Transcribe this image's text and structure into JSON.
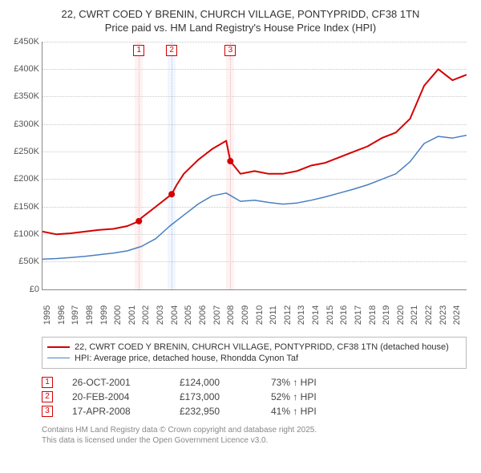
{
  "title_line1": "22, CWRT COED Y BRENIN, CHURCH VILLAGE, PONTYPRIDD, CF38 1TN",
  "title_line2": "Price paid vs. HM Land Registry's House Price Index (HPI)",
  "chart": {
    "type": "line",
    "background_color": "#ffffff",
    "grid_color": "#c8c8c8",
    "ylim": [
      0,
      450000
    ],
    "ytick_step": 50000,
    "yticks": [
      "£0",
      "£50K",
      "£100K",
      "£150K",
      "£200K",
      "£250K",
      "£300K",
      "£350K",
      "£400K",
      "£450K"
    ],
    "xlim": [
      1995,
      2025
    ],
    "xticks": [
      1995,
      1996,
      1997,
      1998,
      1999,
      2000,
      2001,
      2002,
      2003,
      2004,
      2005,
      2006,
      2007,
      2008,
      2009,
      2010,
      2011,
      2012,
      2013,
      2014,
      2015,
      2016,
      2017,
      2018,
      2019,
      2020,
      2021,
      2022,
      2023,
      2024
    ],
    "series": [
      {
        "id": "price-paid",
        "label": "22, CWRT COED Y BRENIN, CHURCH VILLAGE, PONTYPRIDD, CF38 1TN (detached house)",
        "color": "#d40000",
        "line_width": 2,
        "points": [
          [
            1995,
            105000
          ],
          [
            1996,
            100000
          ],
          [
            1997,
            102000
          ],
          [
            1998,
            105000
          ],
          [
            1999,
            108000
          ],
          [
            2000,
            110000
          ],
          [
            2001,
            115000
          ],
          [
            2001.82,
            124000
          ],
          [
            2002,
            130000
          ],
          [
            2003,
            150000
          ],
          [
            2004.14,
            173000
          ],
          [
            2004.5,
            190000
          ],
          [
            2005,
            210000
          ],
          [
            2006,
            235000
          ],
          [
            2007,
            255000
          ],
          [
            2008,
            270000
          ],
          [
            2008.29,
            232950
          ],
          [
            2009,
            210000
          ],
          [
            2010,
            215000
          ],
          [
            2011,
            210000
          ],
          [
            2012,
            210000
          ],
          [
            2013,
            215000
          ],
          [
            2014,
            225000
          ],
          [
            2015,
            230000
          ],
          [
            2016,
            240000
          ],
          [
            2017,
            250000
          ],
          [
            2018,
            260000
          ],
          [
            2019,
            275000
          ],
          [
            2020,
            285000
          ],
          [
            2021,
            310000
          ],
          [
            2022,
            370000
          ],
          [
            2023,
            400000
          ],
          [
            2024,
            380000
          ],
          [
            2025,
            390000
          ]
        ]
      },
      {
        "id": "hpi",
        "label": "HPI: Average price, detached house, Rhondda Cynon Taf",
        "color": "#4a7fbf",
        "line_width": 1.5,
        "points": [
          [
            1995,
            55000
          ],
          [
            1996,
            56000
          ],
          [
            1997,
            58000
          ],
          [
            1998,
            60000
          ],
          [
            1999,
            63000
          ],
          [
            2000,
            66000
          ],
          [
            2001,
            70000
          ],
          [
            2002,
            78000
          ],
          [
            2003,
            92000
          ],
          [
            2004,
            115000
          ],
          [
            2005,
            135000
          ],
          [
            2006,
            155000
          ],
          [
            2007,
            170000
          ],
          [
            2008,
            175000
          ],
          [
            2009,
            160000
          ],
          [
            2010,
            162000
          ],
          [
            2011,
            158000
          ],
          [
            2012,
            155000
          ],
          [
            2013,
            157000
          ],
          [
            2014,
            162000
          ],
          [
            2015,
            168000
          ],
          [
            2016,
            175000
          ],
          [
            2017,
            182000
          ],
          [
            2018,
            190000
          ],
          [
            2019,
            200000
          ],
          [
            2020,
            210000
          ],
          [
            2021,
            232000
          ],
          [
            2022,
            265000
          ],
          [
            2023,
            278000
          ],
          [
            2024,
            275000
          ],
          [
            2025,
            280000
          ]
        ]
      }
    ],
    "markers": [
      {
        "idx": "1",
        "x": 2001.82,
        "y": 124000,
        "band_color": "#fde8e8",
        "line_color": "#e9b4b4"
      },
      {
        "idx": "2",
        "x": 2004.14,
        "y": 173000,
        "band_color": "#e8eefd",
        "line_color": "#b4c3e9"
      },
      {
        "idx": "3",
        "x": 2008.29,
        "y": 232950,
        "band_color": "#fde8e8",
        "line_color": "#e9b4b4"
      }
    ]
  },
  "legend": [
    {
      "series": 0
    },
    {
      "series": 1
    }
  ],
  "sales": [
    {
      "idx": "1",
      "date": "26-OCT-2001",
      "price": "£124,000",
      "hpi": "73% ↑ HPI"
    },
    {
      "idx": "2",
      "date": "20-FEB-2004",
      "price": "£173,000",
      "hpi": "52% ↑ HPI"
    },
    {
      "idx": "3",
      "date": "17-APR-2008",
      "price": "£232,950",
      "hpi": "41% ↑ HPI"
    }
  ],
  "attribution_line1": "Contains HM Land Registry data © Crown copyright and database right 2025.",
  "attribution_line2": "This data is licensed under the Open Government Licence v3.0."
}
